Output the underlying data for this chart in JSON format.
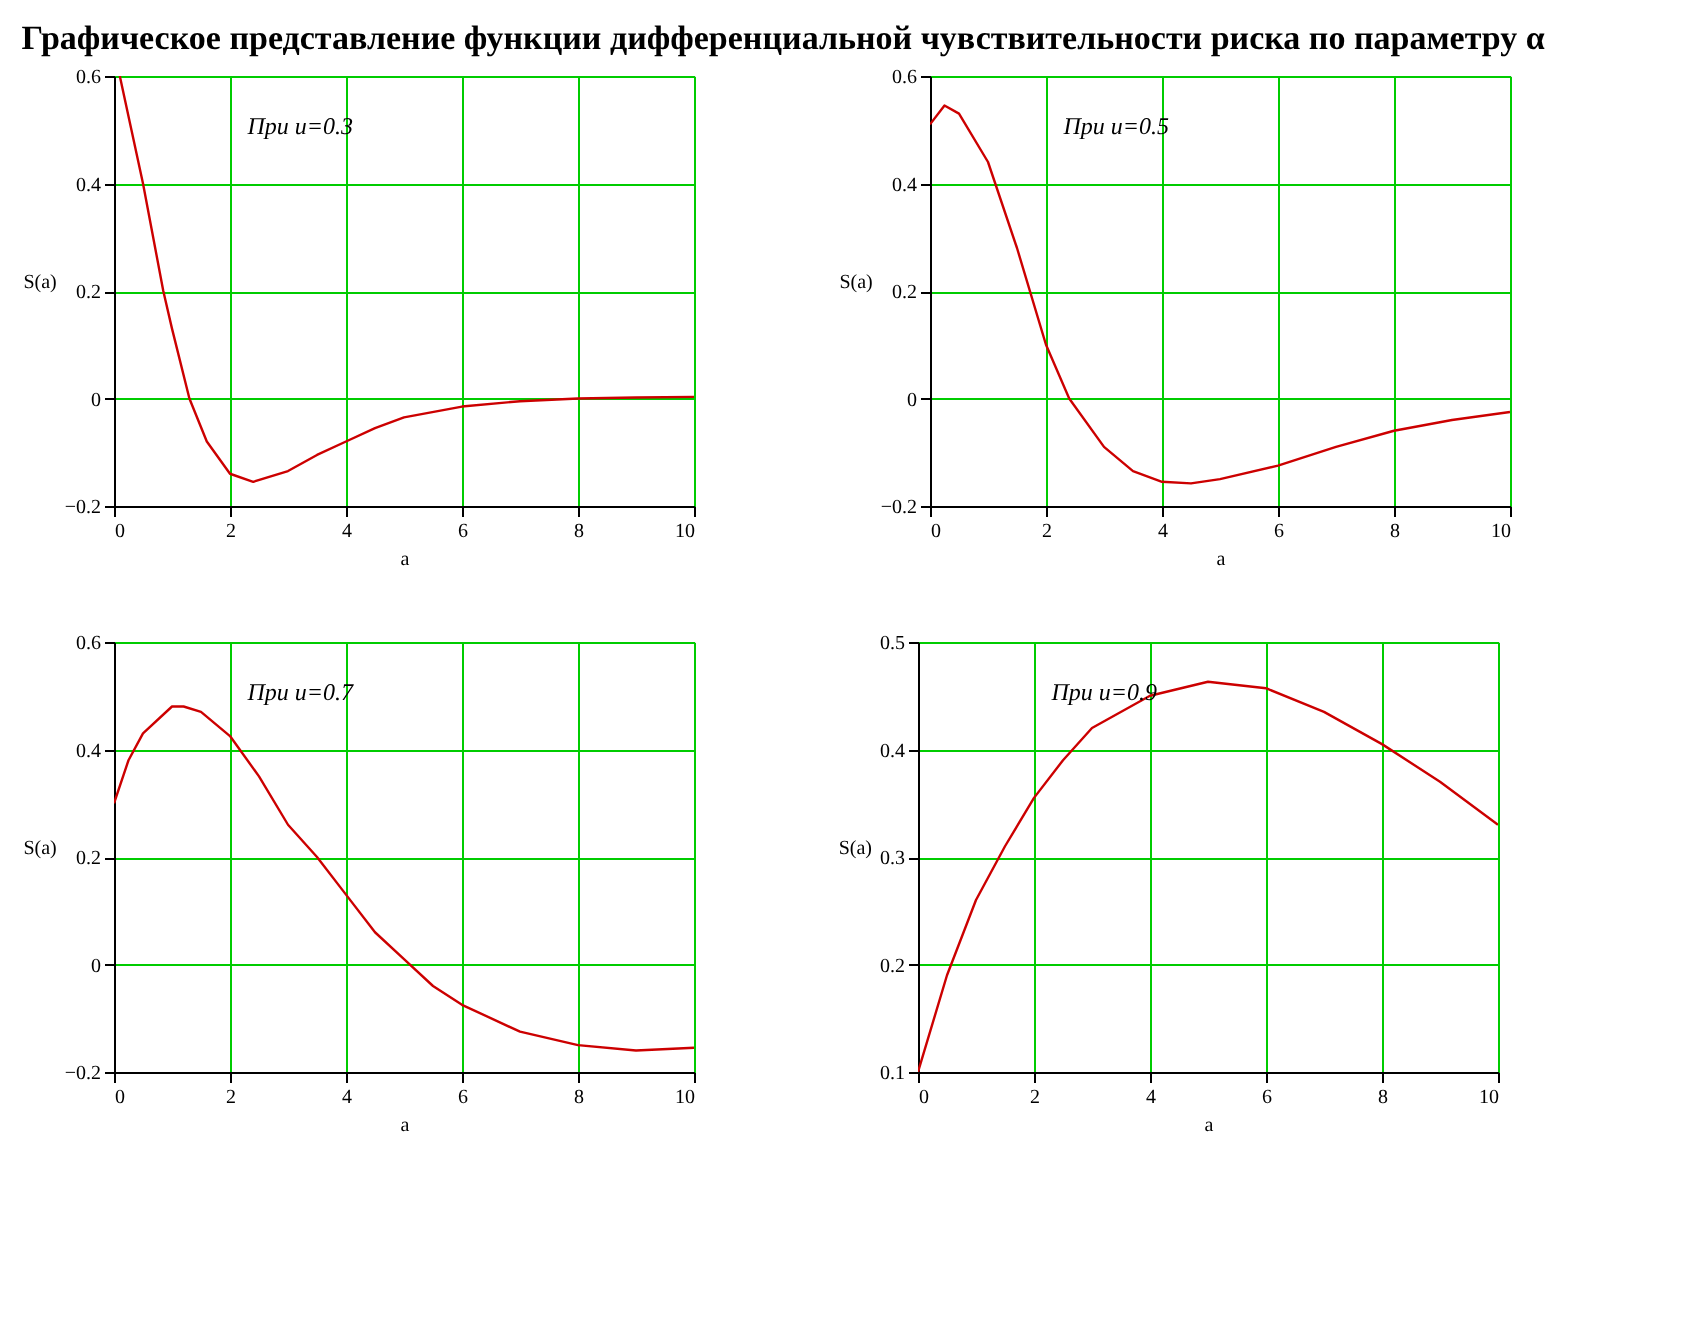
{
  "chart_data": [
    {
      "type": "line",
      "title": "Графическое представление функции дифференциальной чувствительности риска по параметру α",
      "xlabel": "a",
      "ylabel": "S(a)",
      "annotations": [
        "При u=0.3"
      ],
      "xlim": [
        0,
        10
      ],
      "ylim": [
        -0.2,
        0.6
      ],
      "xticks": [
        0,
        2,
        4,
        6,
        8,
        10
      ],
      "yticks": [
        -0.2,
        0,
        0.2,
        0.4,
        0.6
      ],
      "grid": true,
      "line_style": "solid",
      "series": [
        {
          "color": "#cc0000",
          "x": [
            0.1,
            0.3,
            0.5,
            0.85,
            1.0,
            1.3,
            1.6,
            2.0,
            2.4,
            3.0,
            3.5,
            4.0,
            4.5,
            5.0,
            6.0,
            7.0,
            8.0,
            9.0,
            10.0
          ],
          "values": [
            0.6,
            0.5,
            0.4,
            0.2,
            0.13,
            0,
            -0.08,
            -0.14,
            -0.155,
            -0.135,
            -0.105,
            -0.08,
            -0.055,
            -0.035,
            -0.015,
            -0.005,
            0,
            0.002,
            0.003
          ]
        }
      ]
    },
    {
      "type": "line",
      "xlabel": "a",
      "ylabel": "S(a)",
      "annotations": [
        "При u=0.5"
      ],
      "xlim": [
        0,
        10
      ],
      "ylim": [
        -0.2,
        0.6
      ],
      "xticks": [
        0,
        2,
        4,
        6,
        8,
        10
      ],
      "yticks": [
        -0.2,
        0,
        0.2,
        0.4,
        0.6
      ],
      "grid": true,
      "line_style": "solid",
      "series": [
        {
          "color": "#cc0000",
          "x": [
            0,
            0.25,
            0.5,
            1.0,
            1.5,
            2.0,
            2.4,
            3.0,
            3.5,
            4.0,
            4.5,
            5.0,
            6.0,
            7.0,
            8.0,
            9.0,
            10.0
          ],
          "values": [
            0.51,
            0.545,
            0.53,
            0.44,
            0.28,
            0.1,
            0,
            -0.09,
            -0.135,
            -0.155,
            -0.158,
            -0.15,
            -0.125,
            -0.09,
            -0.06,
            -0.04,
            -0.025
          ]
        }
      ]
    },
    {
      "type": "line",
      "xlabel": "a",
      "ylabel": "S(a)",
      "annotations": [
        "При u=0.7"
      ],
      "xlim": [
        0,
        10
      ],
      "ylim": [
        -0.2,
        0.6
      ],
      "xticks": [
        0,
        2,
        4,
        6,
        8,
        10
      ],
      "yticks": [
        -0.2,
        0,
        0.2,
        0.4,
        0.6
      ],
      "grid": true,
      "line_style": "solid",
      "series": [
        {
          "color": "#cc0000",
          "x": [
            0,
            0.25,
            0.5,
            1.0,
            1.2,
            1.5,
            2.0,
            2.5,
            3.0,
            3.5,
            4.0,
            4.5,
            5.0,
            5.5,
            6.0,
            7.0,
            8.0,
            9.0,
            10.0
          ],
          "values": [
            0.3,
            0.38,
            0.43,
            0.48,
            0.48,
            0.47,
            0.425,
            0.35,
            0.26,
            0.2,
            0.13,
            0.06,
            0.01,
            -0.04,
            -0.075,
            -0.125,
            -0.15,
            -0.16,
            -0.155
          ]
        }
      ]
    },
    {
      "type": "line",
      "xlabel": "a",
      "ylabel": "S(a)",
      "annotations": [
        "При u=0.9"
      ],
      "xlim": [
        0,
        10
      ],
      "ylim": [
        0.1,
        0.5
      ],
      "xticks": [
        0,
        2,
        4,
        6,
        8,
        10
      ],
      "yticks": [
        0.1,
        0.2,
        0.3,
        0.4,
        0.5
      ],
      "grid": true,
      "line_style": "solid",
      "series": [
        {
          "color": "#cc0000",
          "x": [
            0,
            0.5,
            1.0,
            1.5,
            2.0,
            2.5,
            3.0,
            4.0,
            5.0,
            6.0,
            7.0,
            8.0,
            9.0,
            10.0
          ],
          "values": [
            0.1,
            0.19,
            0.26,
            0.31,
            0.355,
            0.39,
            0.42,
            0.45,
            0.463,
            0.457,
            0.435,
            0.405,
            0.37,
            0.33
          ]
        }
      ]
    }
  ]
}
